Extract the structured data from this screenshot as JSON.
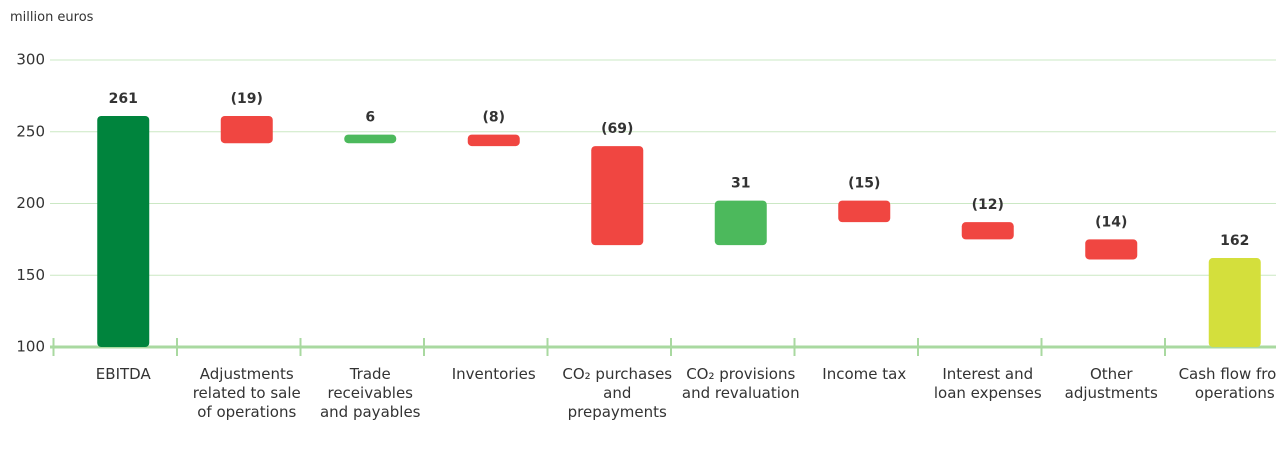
{
  "chart_data": {
    "type": "waterfall",
    "y_axis_label": "million euros",
    "categories": [
      "EBITDA",
      "Adjustments related to sale of operations",
      "Trade receivables and payables",
      "Inventories",
      "CO₂ purchases and prepayments",
      "CO₂ provisions and revaluation",
      "Income tax",
      "Interest and loan expenses",
      "Other adjustments",
      "Cash flow from operations"
    ],
    "values": [
      261,
      -19,
      6,
      -8,
      -69,
      31,
      -15,
      -12,
      -14,
      162
    ],
    "value_labels": [
      "261",
      "(19)",
      "6",
      "(8)",
      "(69)",
      "31",
      "(15)",
      "(12)",
      "(14)",
      "162"
    ],
    "colors": [
      "#00843d",
      "#f04641",
      "#4cb95c",
      "#f04641",
      "#f04641",
      "#4cb95c",
      "#f04641",
      "#f04641",
      "#f04641",
      "#d4df3c"
    ],
    "ylim": [
      100,
      300
    ],
    "yticks": [
      100,
      150,
      200,
      250,
      300
    ],
    "grid": true
  }
}
